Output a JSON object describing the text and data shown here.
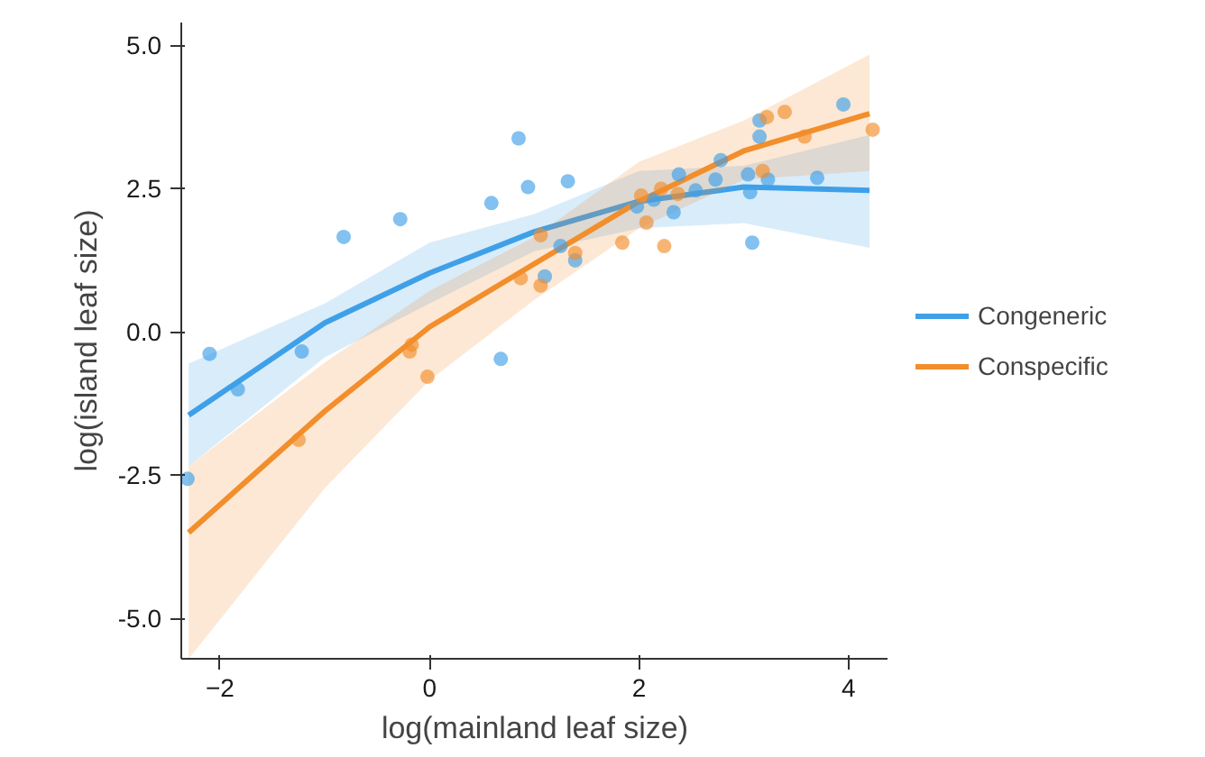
{
  "chart_data": {
    "type": "scatter",
    "xlabel": "log(mainland leaf size)",
    "ylabel": "log(island leaf size)",
    "xlim": [
      -2.37,
      4.38
    ],
    "ylim": [
      -5.7,
      5.4
    ],
    "xticks": [
      -2,
      0,
      2,
      4
    ],
    "yticks": [
      {
        "value": -5,
        "label": "-5.0"
      },
      {
        "value": -2.5,
        "label": "-2.5"
      },
      {
        "value": 0,
        "label": "0.0"
      },
      {
        "value": 2.5,
        "label": "2.5"
      },
      {
        "value": 5,
        "label": "5.0"
      }
    ],
    "grid": false,
    "legend": "right",
    "marker": "circle",
    "series": [
      {
        "type": "scatter",
        "color": "#3fa0e8",
        "x": [
          -2.31,
          -2.1,
          -1.83,
          -1.22,
          -0.82,
          -0.28,
          0.68,
          0.59,
          0.85,
          0.94,
          1.32,
          1.1,
          1.25,
          1.39,
          1.98,
          2.14,
          2.33,
          2.38,
          2.54,
          2.73,
          2.78,
          3.04,
          3.06,
          3.08,
          3.15,
          3.15,
          3.23,
          3.7,
          3.95
        ],
        "values": [
          -2.56,
          -0.38,
          -1.0,
          -0.34,
          1.66,
          1.97,
          -0.47,
          2.25,
          3.38,
          2.53,
          2.63,
          0.97,
          1.5,
          1.25,
          2.19,
          2.31,
          2.09,
          2.75,
          2.47,
          2.66,
          3.0,
          2.75,
          2.44,
          1.56,
          3.41,
          3.69,
          2.66,
          2.69,
          3.97
        ]
      },
      {
        "type": "scatter",
        "color": "#f28e2b",
        "x": [
          -1.25,
          -0.19,
          -0.17,
          -0.02,
          0.87,
          1.06,
          1.06,
          1.39,
          1.84,
          2.02,
          2.07,
          2.21,
          2.24,
          2.37,
          3.18,
          3.22,
          3.39,
          3.58,
          4.23
        ],
        "values": [
          -1.88,
          -0.34,
          -0.22,
          -0.78,
          0.94,
          0.81,
          1.69,
          1.38,
          1.56,
          2.38,
          1.91,
          2.5,
          1.5,
          2.41,
          2.81,
          3.75,
          3.84,
          3.41,
          3.53
        ]
      },
      {
        "type": "line",
        "marker": "none",
        "name": "Congeneric",
        "color": "#3fa0e8",
        "x": [
          -2.3,
          -1,
          0,
          1,
          2,
          3,
          4.2
        ],
        "values": [
          -1.45,
          0.16,
          1.03,
          1.75,
          2.28,
          2.53,
          2.47
        ],
        "lower": [
          -2.34,
          -0.44,
          0.5,
          1.41,
          1.81,
          1.9,
          1.47
        ],
        "upper": [
          -0.55,
          0.5,
          1.56,
          2.06,
          2.81,
          2.9,
          3.44
        ]
      },
      {
        "type": "line",
        "marker": "none",
        "name": "Conspecific",
        "color": "#f28e2b",
        "x": [
          -2.3,
          -1,
          0,
          1,
          2,
          3,
          4.2
        ],
        "values": [
          -3.5,
          -1.38,
          0.09,
          1.19,
          2.28,
          3.16,
          3.81
        ],
        "lower": [
          -5.7,
          -2.72,
          -0.84,
          0.56,
          1.81,
          2.66,
          2.81
        ],
        "upper": [
          -2.34,
          -0.53,
          0.72,
          1.66,
          2.97,
          3.69,
          4.84
        ]
      }
    ]
  }
}
